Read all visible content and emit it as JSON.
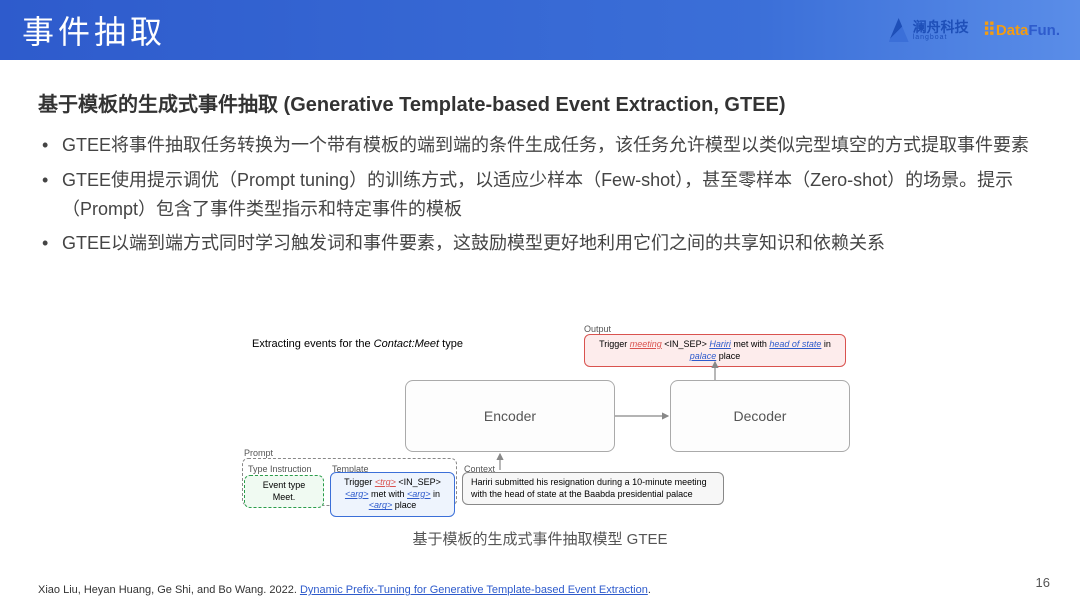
{
  "header": {
    "title": "事件抽取"
  },
  "logos": {
    "langboat_cn": "澜舟科技",
    "langboat_en": "langboat",
    "datafun_a": "Data",
    "datafun_b": "Fun."
  },
  "subtitle": "基于模板的生成式事件抽取 (Generative Template-based Event Extraction, GTEE)",
  "bullets": [
    "GTEE将事件抽取任务转换为一个带有模板的端到端的条件生成任务，该任务允许模型以类似完型填空的方式提取事件要素",
    "GTEE使用提示调优（Prompt tuning）的训练方式，以适应少样本（Few-shot），甚至零样本（Zero-shot）的场景。提示（Prompt）包含了事件类型指示和特定事件的模板",
    "GTEE以端到端方式同时学习触发词和事件要素，这鼓励模型更好地利用它们之间的共享知识和依赖关系"
  ],
  "diagram": {
    "title_prefix": "Extracting events for the ",
    "title_ital": "Contact:Meet",
    "title_suffix": " type",
    "encoder": "Encoder",
    "decoder": "Decoder",
    "labels": {
      "output": "Output",
      "prompt": "Prompt",
      "type_instruction": "Type Instruction",
      "template": "Template",
      "context": "Context"
    },
    "type_inst_text": "Event type Meet.",
    "template_html": "Trigger <span class='red-u'>&lt;trg&gt;</span> &lt;IN_SEP&gt; <span class='blue-u'>&lt;arg&gt;</span> met with <span class='blue-u'>&lt;arg&gt;</span> in <span class='blue-u'>&lt;arg&gt;</span> place",
    "context_text": "Hariri submitted his resignation during a 10-minute meeting with the head of state at the Baabda presidential palace",
    "output_html": "Trigger <span class='red-u'>meeting</span> &lt;IN_SEP&gt; <span class='blue-u'>Hariri</span> met with <span class='blue-u'>head of state</span> in <span class='blue-u'>palace</span> place",
    "colors": {
      "encoder_border": "#aaaaaa",
      "type_border": "#2a9d4a",
      "type_fill": "#f0faf2",
      "template_border": "#3b6fd8",
      "template_fill": "#eef4fd",
      "context_border": "#888888",
      "context_fill": "#f7f7f7",
      "output_border": "#d9534f",
      "output_fill": "#fdecec",
      "arrow": "#888888"
    }
  },
  "caption": "基于模板的生成式事件抽取模型 GTEE",
  "footer": {
    "prefix": "Xiao Liu, Heyan Huang, Ge Shi, and Bo Wang. 2022. ",
    "link": "Dynamic Prefix-Tuning for Generative Template-based Event Extraction",
    "suffix": "."
  },
  "page_number": "16"
}
